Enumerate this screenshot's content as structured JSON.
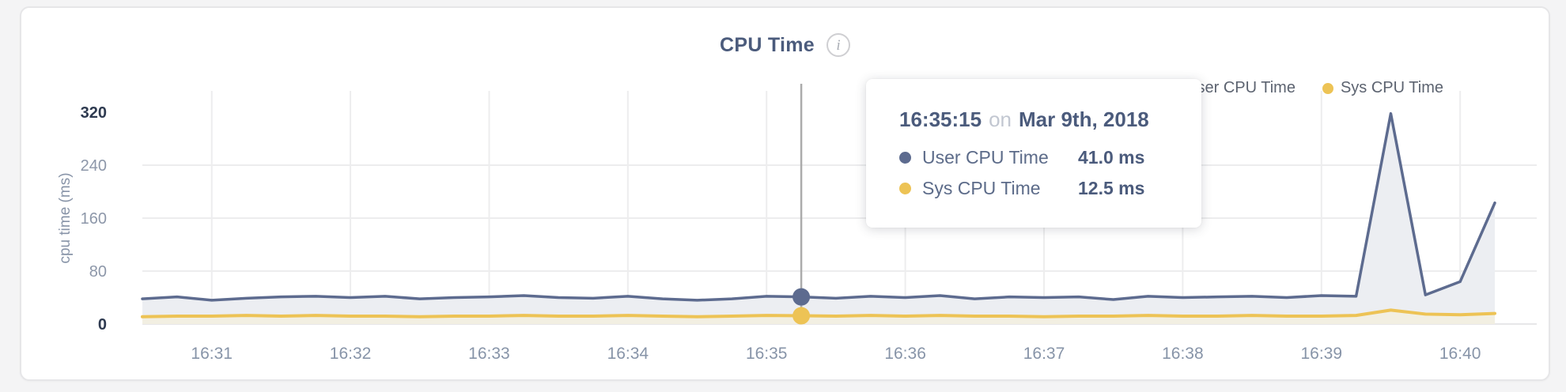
{
  "page": {
    "background": "#f4f4f5"
  },
  "header": {
    "title": "CPU Time",
    "info_icon": "i"
  },
  "legend": {
    "items": [
      {
        "label": "User CPU Time",
        "color": "#5d6b8f"
      },
      {
        "label": "Sys CPU Time",
        "color": "#edc355"
      }
    ]
  },
  "tooltip": {
    "time": "16:35:15",
    "connector": "on",
    "date": "Mar 9th, 2018",
    "rows": [
      {
        "label": "User CPU Time",
        "value": "41.0 ms",
        "color": "#5d6b8f"
      },
      {
        "label": "Sys CPU Time",
        "value": "12.5 ms",
        "color": "#edc355"
      }
    ]
  },
  "chart_data": {
    "type": "area",
    "title": "CPU Time",
    "ylabel": "cpu time (ms)",
    "ylim": [
      0,
      320
    ],
    "y_ticks": [
      0,
      80,
      160,
      240,
      320
    ],
    "x_ticks": [
      "16:31",
      "16:32",
      "16:33",
      "16:34",
      "16:35",
      "16:36",
      "16:37",
      "16:38",
      "16:39",
      "16:40"
    ],
    "grid": true,
    "legend_position": "top-right",
    "x": [
      "16:30:30",
      "16:30:45",
      "16:31:00",
      "16:31:15",
      "16:31:30",
      "16:31:45",
      "16:32:00",
      "16:32:15",
      "16:32:30",
      "16:32:45",
      "16:33:00",
      "16:33:15",
      "16:33:30",
      "16:33:45",
      "16:34:00",
      "16:34:15",
      "16:34:30",
      "16:34:45",
      "16:35:00",
      "16:35:15",
      "16:35:30",
      "16:35:45",
      "16:36:00",
      "16:36:15",
      "16:36:30",
      "16:36:45",
      "16:37:00",
      "16:37:15",
      "16:37:30",
      "16:37:45",
      "16:38:00",
      "16:38:15",
      "16:38:30",
      "16:38:45",
      "16:39:00",
      "16:39:15",
      "16:39:30",
      "16:39:45",
      "16:40:00",
      "16:40:15"
    ],
    "series": [
      {
        "name": "User CPU Time",
        "color": "#5d6b8f",
        "fill": "#eceef2",
        "values": [
          38,
          41,
          36,
          39,
          41,
          42,
          40,
          42,
          38,
          40,
          41,
          43,
          40,
          39,
          42,
          38,
          36,
          38,
          42,
          41,
          39,
          42,
          40,
          43,
          38,
          41,
          40,
          41,
          37,
          42,
          40,
          41,
          42,
          40,
          43,
          42,
          318,
          44,
          64,
          183
        ]
      },
      {
        "name": "Sys CPU Time",
        "color": "#edc355",
        "fill": "#f2efe2",
        "values": [
          11,
          12,
          12,
          13,
          12,
          13,
          12,
          12,
          11,
          12,
          12,
          13,
          12,
          12,
          13,
          12,
          11,
          12,
          13,
          12.5,
          12,
          13,
          12,
          13,
          12,
          12,
          11,
          12,
          12,
          13,
          12,
          12,
          13,
          12,
          12,
          13,
          21,
          15,
          14,
          16
        ]
      }
    ],
    "selected": {
      "index": 19,
      "time": "16:35:15",
      "date": "Mar 9th, 2018",
      "values": {
        "User CPU Time": 41.0,
        "Sys CPU Time": 12.5
      }
    }
  }
}
